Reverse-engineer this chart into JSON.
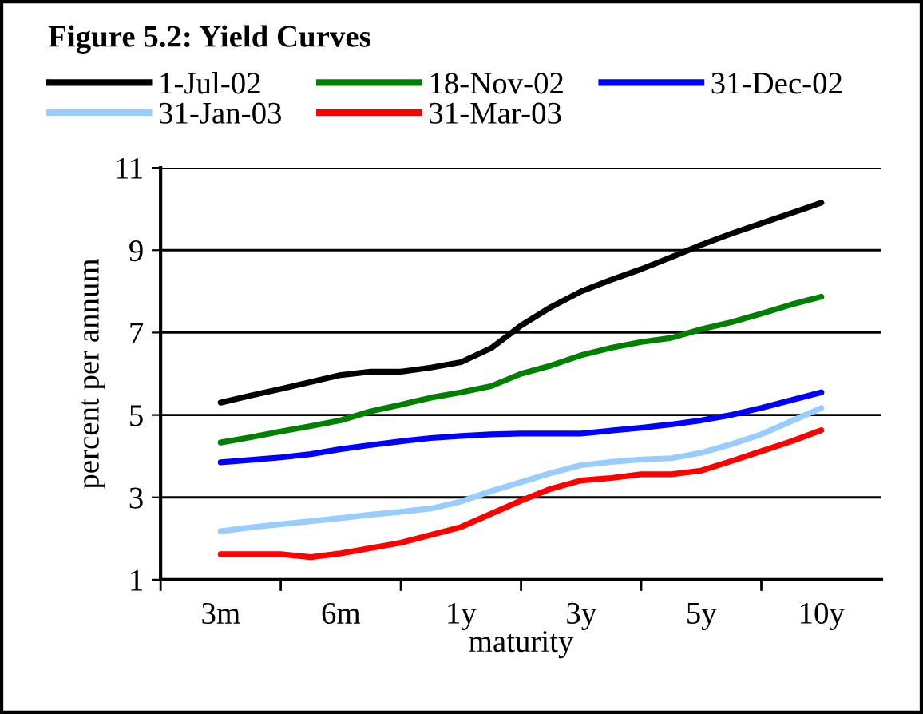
{
  "chart_data": {
    "type": "line",
    "title": "Figure 5.2: Yield Curves",
    "xlabel": "maturity",
    "ylabel": "percent per annum",
    "categories": [
      "3m",
      null,
      null,
      null,
      "6m",
      null,
      null,
      null,
      "1y",
      null,
      null,
      null,
      "3y",
      null,
      null,
      null,
      "5y",
      null,
      null,
      null,
      "10y"
    ],
    "series": [
      {
        "name": "1-Jul-02",
        "color": "#000000",
        "values": [
          5.3,
          5.47,
          5.63,
          5.8,
          5.97,
          6.05,
          6.05,
          6.15,
          6.28,
          6.62,
          7.17,
          7.62,
          8.0,
          8.28,
          8.54,
          8.83,
          9.13,
          9.4,
          9.65,
          9.9,
          10.15
        ]
      },
      {
        "name": "18-Nov-02",
        "color": "#008000",
        "values": [
          4.33,
          4.46,
          4.6,
          4.73,
          4.87,
          5.09,
          5.25,
          5.42,
          5.55,
          5.7,
          6.0,
          6.2,
          6.45,
          6.63,
          6.77,
          6.87,
          7.08,
          7.25,
          7.46,
          7.68,
          7.87
        ]
      },
      {
        "name": "31-Dec-02",
        "color": "#0000ff",
        "values": [
          3.85,
          3.91,
          3.97,
          4.05,
          4.17,
          4.27,
          4.36,
          4.44,
          4.49,
          4.53,
          4.55,
          4.55,
          4.55,
          4.62,
          4.69,
          4.77,
          4.87,
          5.0,
          5.17,
          5.36,
          5.55
        ]
      },
      {
        "name": "31-Jan-03",
        "color": "#99ccff",
        "values": [
          2.18,
          2.27,
          2.35,
          2.42,
          2.5,
          2.58,
          2.65,
          2.73,
          2.9,
          3.15,
          3.37,
          3.59,
          3.78,
          3.86,
          3.92,
          3.95,
          4.08,
          4.29,
          4.53,
          4.85,
          5.17
        ]
      },
      {
        "name": "31-Mar-03",
        "color": "#ff0000",
        "values": [
          1.62,
          1.62,
          1.62,
          1.55,
          1.64,
          1.77,
          1.9,
          2.09,
          2.28,
          2.6,
          2.92,
          3.21,
          3.41,
          3.47,
          3.56,
          3.56,
          3.65,
          3.88,
          4.12,
          4.36,
          4.63
        ]
      }
    ],
    "ylim": [
      1,
      11
    ],
    "yticks": [
      1,
      3,
      5,
      7,
      9,
      11
    ],
    "grid": "y",
    "legend": "top",
    "marker": "none",
    "line_style": "solid"
  }
}
